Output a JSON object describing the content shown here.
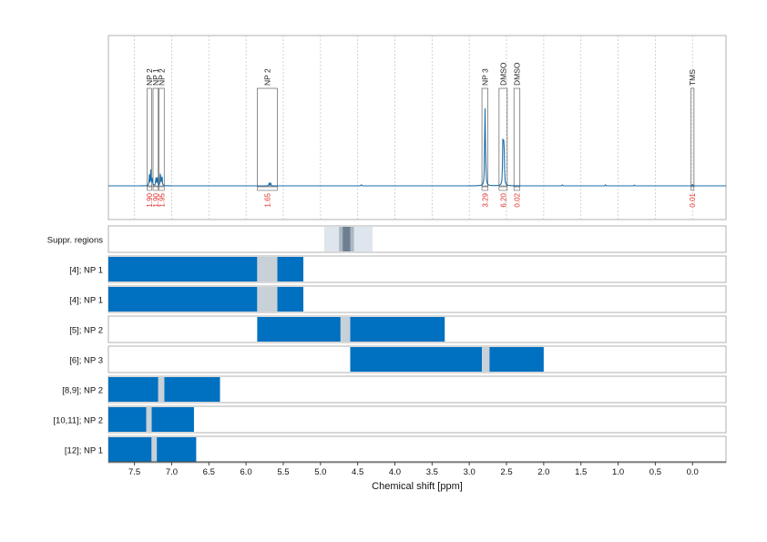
{
  "chart_data": {
    "type": "nmr-spectrum-with-range-panels",
    "xlabel": "Chemical shift [ppm]",
    "x_range": [
      7.85,
      -0.45
    ],
    "x_ticks": [
      "7.5",
      "7.0",
      "6.5",
      "6.0",
      "5.5",
      "5.0",
      "4.5",
      "4.0",
      "3.5",
      "3.0",
      "2.5",
      "2.0",
      "1.5",
      "1.0",
      "0.5",
      "0.0"
    ],
    "grid": true,
    "colors": {
      "spectrum": "#1f6ea8",
      "bar": "#0070c0",
      "gap": "#c8d0d8",
      "integral": "#e0302a",
      "suppr_light": "#dfe5ec",
      "suppr_mid": "#aab7c4",
      "suppr_dark": "#6d7f90"
    },
    "spectrum": {
      "peaks": [
        {
          "ppm": 7.3,
          "height": 0.12
        },
        {
          "ppm": 7.28,
          "height": 0.17
        },
        {
          "ppm": 7.26,
          "height": 0.1
        },
        {
          "ppm": 7.21,
          "height": 0.12
        },
        {
          "ppm": 7.19,
          "height": 0.09
        },
        {
          "ppm": 7.15,
          "height": 0.16
        },
        {
          "ppm": 7.13,
          "height": 0.12
        },
        {
          "ppm": 5.67,
          "height": 0.035
        },
        {
          "ppm": 5.69,
          "height": 0.03
        },
        {
          "ppm": 4.45,
          "height": 0.015
        },
        {
          "ppm": 2.79,
          "height": 0.95
        },
        {
          "ppm": 2.78,
          "height": 0.3
        },
        {
          "ppm": 2.54,
          "height": 0.58
        },
        {
          "ppm": 2.55,
          "height": 0.4
        },
        {
          "ppm": 2.53,
          "height": 0.3
        },
        {
          "ppm": 1.75,
          "height": 0.012
        },
        {
          "ppm": 1.17,
          "height": 0.012
        },
        {
          "ppm": 0.78,
          "height": 0.008
        },
        {
          "ppm": 0.0,
          "height": 0.02
        }
      ],
      "annotations": [
        {
          "label": "NP 2",
          "from": 7.33,
          "to": 7.27,
          "integral": "1.90"
        },
        {
          "label": "NP 1",
          "from": 7.25,
          "to": 7.18,
          "integral": "1.90"
        },
        {
          "label": "NP 2",
          "from": 7.17,
          "to": 7.1,
          "integral": "1.95"
        },
        {
          "label": "NP 2",
          "from": 5.85,
          "to": 5.58,
          "integral": "1.65"
        },
        {
          "label": "NP 3",
          "from": 2.83,
          "to": 2.75,
          "integral": "3.29"
        },
        {
          "label": "DMSO",
          "from": 2.6,
          "to": 2.49,
          "integral": "6.20"
        },
        {
          "label": "DMSO",
          "from": 2.4,
          "to": 2.32,
          "integral": "0.02"
        },
        {
          "label": "TMS",
          "from": 0.02,
          "to": -0.02,
          "integral": "0.01"
        }
      ]
    },
    "panels": [
      {
        "label": "Suppr. regions",
        "kind": "suppression",
        "light": [
          4.95,
          4.3
        ],
        "mid": [
          4.75,
          4.55
        ],
        "dark": [
          4.7,
          4.6
        ]
      },
      {
        "label": "[4]; NP 1",
        "bars": [
          [
            7.85,
            5.85
          ],
          [
            5.58,
            5.23
          ]
        ],
        "gap": [
          5.85,
          5.58
        ]
      },
      {
        "label": "[4]; NP 1",
        "bars": [
          [
            7.85,
            5.85
          ],
          [
            5.58,
            5.23
          ]
        ],
        "gap": [
          5.85,
          5.58
        ]
      },
      {
        "label": "[5]; NP 2",
        "bars": [
          [
            5.85,
            4.73
          ],
          [
            4.6,
            3.33
          ]
        ],
        "gap": [
          4.73,
          4.6
        ]
      },
      {
        "label": "[6]; NP 3",
        "bars": [
          [
            4.6,
            2.83
          ],
          [
            2.73,
            2.0
          ]
        ],
        "gap": [
          2.83,
          2.73
        ]
      },
      {
        "label": "[8,9]; NP 2",
        "bars": [
          [
            7.85,
            7.18
          ],
          [
            7.1,
            6.35
          ]
        ],
        "gap": [
          7.18,
          7.1
        ]
      },
      {
        "label": "[10,11]; NP 2",
        "bars": [
          [
            7.85,
            7.34
          ],
          [
            7.27,
            6.7
          ]
        ],
        "gap": [
          7.34,
          7.27
        ]
      },
      {
        "label": "[12]; NP 1",
        "bars": [
          [
            7.85,
            7.27
          ],
          [
            7.2,
            6.67
          ]
        ],
        "gap": [
          7.27,
          7.2
        ]
      }
    ]
  }
}
